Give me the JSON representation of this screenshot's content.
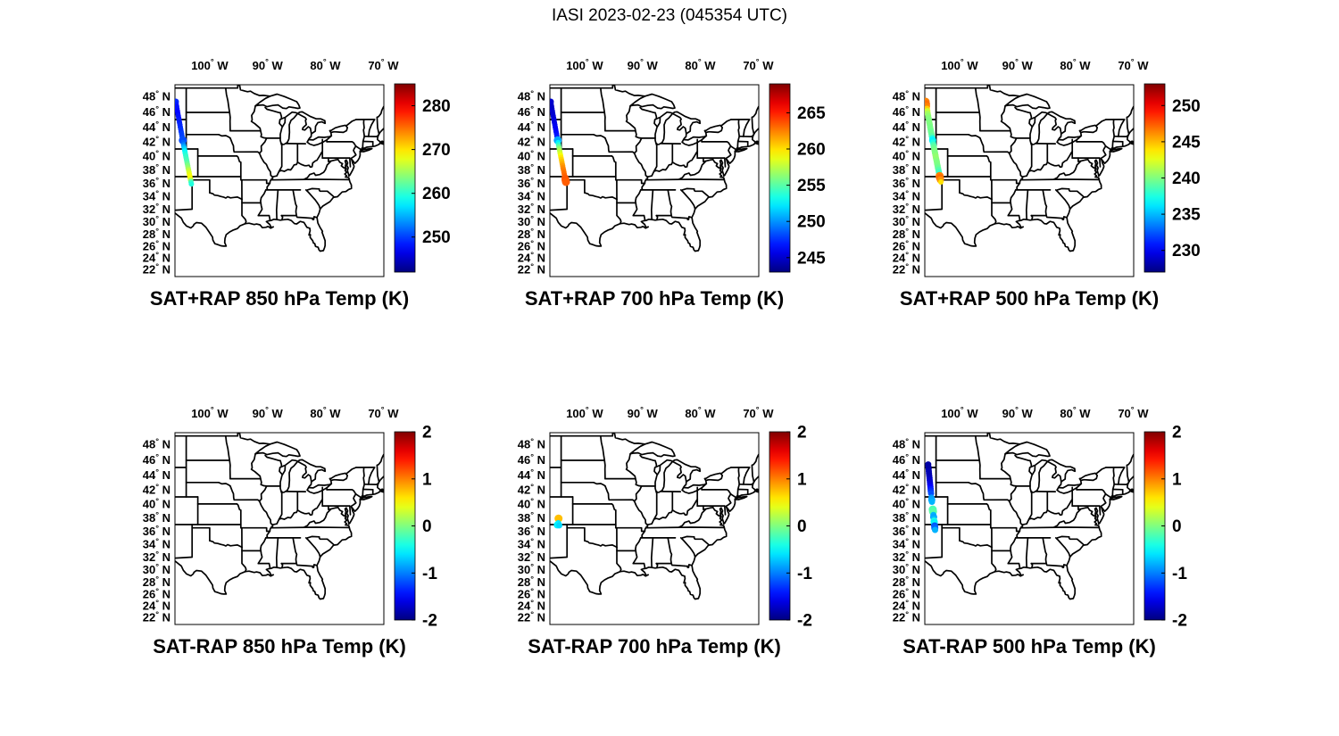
{
  "figure": {
    "title": "IASI 2023-02-23 (045354 UTC)",
    "background_color": "#ffffff",
    "text_color": "#000000",
    "map_line_color": "#000000"
  },
  "axes": {
    "lon_ticks": [
      100,
      90,
      80,
      70
    ],
    "lon_direction": "W",
    "lat_ticks": [
      48,
      46,
      44,
      42,
      40,
      38,
      36,
      34,
      32,
      30,
      28,
      26,
      24,
      22
    ],
    "lat_direction": "N"
  },
  "chart_data": [
    {
      "id": "sat-plus-rap-850",
      "type": "scatter",
      "projection": "mercator",
      "title": "SAT+RAP 850 hPa Temp (K)",
      "extent": {
        "lon_min": -106.0,
        "lon_max": -69.9,
        "lat_min": 20.8,
        "lat_max": 49.4
      },
      "colorbar": {
        "colormap": "jet",
        "min": 242,
        "max": 285,
        "ticks": [
          280,
          270,
          260,
          250
        ]
      },
      "points_format": [
        "lat",
        "lon",
        "value_K",
        "radius_px"
      ],
      "points": [
        [
          47.3,
          -105.85,
          249,
          3.5
        ],
        [
          47.0,
          -105.78,
          248.5,
          3
        ],
        [
          46.7,
          -105.71,
          248,
          3
        ],
        [
          46.4,
          -105.64,
          248,
          3
        ],
        [
          46.1,
          -105.57,
          247.5,
          3
        ],
        [
          45.8,
          -105.5,
          247.5,
          3
        ],
        [
          45.5,
          -105.43,
          248,
          3
        ],
        [
          45.2,
          -105.35,
          248,
          3
        ],
        [
          44.9,
          -105.28,
          248.5,
          3
        ],
        [
          44.6,
          -105.21,
          248.5,
          3
        ],
        [
          44.3,
          -105.14,
          249,
          3
        ],
        [
          44.0,
          -105.07,
          249,
          3
        ],
        [
          43.7,
          -105.0,
          249.5,
          3
        ],
        [
          43.4,
          -104.93,
          249.5,
          3
        ],
        [
          43.1,
          -104.86,
          250,
          3
        ],
        [
          42.8,
          -104.79,
          250,
          3
        ],
        [
          42.5,
          -104.72,
          250.5,
          3
        ],
        [
          42.2,
          -104.65,
          250.5,
          4.5
        ],
        [
          41.9,
          -104.58,
          251.5,
          3
        ],
        [
          41.6,
          -104.51,
          253,
          3
        ],
        [
          41.3,
          -104.44,
          255,
          3
        ],
        [
          41.0,
          -104.37,
          256.5,
          3
        ],
        [
          40.7,
          -104.29,
          258,
          3
        ],
        [
          40.4,
          -104.22,
          259,
          3
        ],
        [
          40.1,
          -104.15,
          260,
          3
        ],
        [
          39.8,
          -104.08,
          260.5,
          3
        ],
        [
          39.5,
          -104.01,
          261,
          3
        ],
        [
          39.2,
          -103.94,
          261.5,
          3
        ],
        [
          38.9,
          -103.87,
          262.5,
          3
        ],
        [
          38.6,
          -103.8,
          263.5,
          3
        ],
        [
          38.3,
          -103.73,
          264.5,
          3
        ],
        [
          38.0,
          -103.66,
          266,
          3
        ],
        [
          37.7,
          -103.58,
          267,
          3
        ],
        [
          37.4,
          -103.51,
          268,
          3
        ],
        [
          37.1,
          -103.44,
          268.5,
          3
        ],
        [
          36.8,
          -103.37,
          269,
          3
        ],
        [
          36.5,
          -103.3,
          266,
          3
        ],
        [
          36.2,
          -103.23,
          261,
          3
        ],
        [
          35.9,
          -103.16,
          259.5,
          3
        ]
      ]
    },
    {
      "id": "sat-plus-rap-700",
      "type": "scatter",
      "projection": "mercator",
      "title": "SAT+RAP 700 hPa Temp (K)",
      "extent": {
        "lon_min": -106.0,
        "lon_max": -69.9,
        "lat_min": 20.8,
        "lat_max": 49.4
      },
      "colorbar": {
        "colormap": "jet",
        "min": 243,
        "max": 269,
        "ticks": [
          265,
          260,
          255,
          250,
          245
        ]
      },
      "points_format": [
        "lat",
        "lon",
        "value_K",
        "radius_px"
      ],
      "points": [
        [
          47.3,
          -105.85,
          245,
          3.5
        ],
        [
          47.0,
          -105.78,
          245,
          3
        ],
        [
          46.7,
          -105.71,
          244.8,
          3
        ],
        [
          46.4,
          -105.64,
          244.8,
          3
        ],
        [
          46.1,
          -105.57,
          245,
          3
        ],
        [
          45.8,
          -105.5,
          245,
          3
        ],
        [
          45.5,
          -105.43,
          245.2,
          3
        ],
        [
          45.2,
          -105.35,
          245.2,
          3
        ],
        [
          44.9,
          -105.28,
          245.5,
          3
        ],
        [
          44.6,
          -105.21,
          245.5,
          3
        ],
        [
          44.3,
          -105.14,
          245.8,
          3
        ],
        [
          44.0,
          -105.07,
          246,
          3
        ],
        [
          43.7,
          -105.0,
          246,
          3
        ],
        [
          43.4,
          -104.93,
          246.2,
          3
        ],
        [
          43.1,
          -104.86,
          246.5,
          3
        ],
        [
          42.8,
          -104.79,
          246.8,
          3
        ],
        [
          42.5,
          -104.72,
          247.2,
          3
        ],
        [
          42.2,
          -104.65,
          250.5,
          4.5
        ],
        [
          41.9,
          -104.58,
          252.5,
          3
        ],
        [
          41.6,
          -104.51,
          254,
          3
        ],
        [
          41.3,
          -104.44,
          255.5,
          3
        ],
        [
          41.0,
          -104.37,
          256.5,
          3
        ],
        [
          40.7,
          -104.29,
          257.5,
          3
        ],
        [
          40.4,
          -104.22,
          258.2,
          3
        ],
        [
          40.1,
          -104.15,
          259,
          3
        ],
        [
          39.8,
          -104.08,
          259.8,
          3
        ],
        [
          39.5,
          -104.01,
          260.3,
          3
        ],
        [
          39.2,
          -103.94,
          260.8,
          3
        ],
        [
          38.9,
          -103.87,
          261.3,
          3
        ],
        [
          38.6,
          -103.8,
          261.8,
          3
        ],
        [
          38.3,
          -103.73,
          262.2,
          3
        ],
        [
          38.0,
          -103.66,
          262.5,
          3
        ],
        [
          37.7,
          -103.58,
          262.8,
          3
        ],
        [
          37.4,
          -103.51,
          263,
          3
        ],
        [
          37.1,
          -103.44,
          263.2,
          3
        ],
        [
          36.8,
          -103.37,
          263.4,
          4
        ],
        [
          36.5,
          -103.3,
          263.6,
          4.5
        ],
        [
          36.2,
          -103.23,
          263.4,
          4.5
        ]
      ]
    },
    {
      "id": "sat-plus-rap-500",
      "type": "scatter",
      "projection": "mercator",
      "title": "SAT+RAP 500 hPa Temp (K)",
      "extent": {
        "lon_min": -106.0,
        "lon_max": -69.9,
        "lat_min": 20.8,
        "lat_max": 49.4
      },
      "colorbar": {
        "colormap": "jet",
        "min": 227,
        "max": 253,
        "ticks": [
          250,
          245,
          240,
          235,
          230
        ]
      },
      "points_format": [
        "lat",
        "lon",
        "value_K",
        "radius_px"
      ],
      "points": [
        [
          47.3,
          -105.85,
          246.5,
          4.5
        ],
        [
          47.0,
          -105.78,
          247,
          4.5
        ],
        [
          46.7,
          -105.71,
          246.5,
          4
        ],
        [
          46.4,
          -105.64,
          244.5,
          3.5
        ],
        [
          46.1,
          -105.57,
          242,
          3.5
        ],
        [
          45.8,
          -105.5,
          241,
          3.5
        ],
        [
          45.5,
          -105.43,
          240.5,
          3.5
        ],
        [
          45.2,
          -105.35,
          240.2,
          3.5
        ],
        [
          44.9,
          -105.28,
          240,
          3.5
        ],
        [
          44.6,
          -105.21,
          240,
          3.5
        ],
        [
          44.3,
          -105.14,
          240,
          3.5
        ],
        [
          44.0,
          -105.07,
          239.8,
          3.5
        ],
        [
          43.7,
          -105.0,
          239.8,
          3.5
        ],
        [
          43.4,
          -104.93,
          239.5,
          3.5
        ],
        [
          43.1,
          -104.86,
          239.5,
          3.5
        ],
        [
          42.8,
          -104.79,
          239,
          3.5
        ],
        [
          42.5,
          -104.72,
          237.5,
          3.5
        ],
        [
          42.2,
          -104.65,
          236.5,
          4
        ],
        [
          41.9,
          -104.58,
          237.5,
          3.5
        ],
        [
          41.6,
          -104.51,
          238.5,
          3.5
        ],
        [
          41.3,
          -104.44,
          239.2,
          3.5
        ],
        [
          41.0,
          -104.37,
          239.6,
          3.5
        ],
        [
          40.7,
          -104.29,
          240,
          3.5
        ],
        [
          40.4,
          -104.22,
          240,
          3.5
        ],
        [
          40.1,
          -104.15,
          240.3,
          3.5
        ],
        [
          39.8,
          -104.08,
          240.5,
          3.5
        ],
        [
          39.5,
          -104.01,
          240.3,
          3.5
        ],
        [
          39.2,
          -103.94,
          240,
          3.5
        ],
        [
          38.9,
          -103.87,
          240,
          3.5
        ],
        [
          38.6,
          -103.8,
          239.8,
          3.5
        ],
        [
          38.3,
          -103.73,
          239.5,
          3.5
        ],
        [
          38.0,
          -103.66,
          239,
          3.5
        ],
        [
          37.7,
          -103.58,
          238.5,
          3.5
        ],
        [
          37.4,
          -103.51,
          238,
          3.5
        ],
        [
          37.1,
          -103.44,
          246.5,
          4.5
        ],
        [
          36.8,
          -103.37,
          247,
          4.5
        ],
        [
          36.5,
          -103.3,
          246,
          4
        ],
        [
          36.2,
          -103.23,
          244,
          3
        ]
      ]
    },
    {
      "id": "sat-minus-rap-850",
      "type": "scatter",
      "projection": "mercator",
      "title": "SAT-RAP 850 hPa Temp (K)",
      "extent": {
        "lon_min": -106.0,
        "lon_max": -69.9,
        "lat_min": 20.8,
        "lat_max": 49.4
      },
      "colorbar": {
        "colormap": "jet",
        "min": -2,
        "max": 2,
        "ticks": [
          2,
          1,
          0,
          -1,
          -2
        ]
      },
      "points_format": [
        "lat",
        "lon",
        "value_K",
        "radius_px"
      ],
      "points": []
    },
    {
      "id": "sat-minus-rap-700",
      "type": "scatter",
      "projection": "mercator",
      "title": "SAT-RAP 700 hPa Temp (K)",
      "extent": {
        "lon_min": -106.0,
        "lon_max": -69.9,
        "lat_min": 20.8,
        "lat_max": 49.4
      },
      "colorbar": {
        "colormap": "jet",
        "min": -2,
        "max": 2,
        "ticks": [
          2,
          1,
          0,
          -1,
          -2
        ]
      },
      "points_format": [
        "lat",
        "lon",
        "value_K",
        "radius_px"
      ],
      "points": [
        [
          37.9,
          -104.5,
          0.75,
          4.5
        ],
        [
          37.2,
          -104.55,
          -0.6,
          3.5
        ],
        [
          36.95,
          -104.72,
          -0.55,
          4
        ],
        [
          36.88,
          -104.38,
          -0.65,
          3.5
        ]
      ]
    },
    {
      "id": "sat-minus-rap-500",
      "type": "scatter",
      "projection": "mercator",
      "title": "SAT-RAP 500 hPa Temp (K)",
      "extent": {
        "lon_min": -106.0,
        "lon_max": -69.9,
        "lat_min": 20.8,
        "lat_max": 49.4
      },
      "colorbar": {
        "colormap": "jet",
        "min": -2,
        "max": 2,
        "ticks": [
          2,
          1,
          0,
          -1,
          -2
        ]
      },
      "points_format": [
        "lat",
        "lon",
        "value_K",
        "radius_px"
      ],
      "points": [
        [
          45.4,
          -105.42,
          -1.85,
          3.5
        ],
        [
          45.1,
          -105.38,
          -1.85,
          3.5
        ],
        [
          44.8,
          -105.34,
          -1.85,
          3.5
        ],
        [
          44.5,
          -105.3,
          -1.8,
          3.5
        ],
        [
          44.2,
          -105.27,
          -1.8,
          3.5
        ],
        [
          43.9,
          -105.23,
          -1.8,
          3.5
        ],
        [
          43.6,
          -105.19,
          -1.75,
          3.5
        ],
        [
          43.3,
          -105.15,
          -1.7,
          3.5
        ],
        [
          43.0,
          -105.11,
          -1.65,
          3.5
        ],
        [
          42.7,
          -105.07,
          -1.6,
          3.5
        ],
        [
          42.4,
          -105.03,
          -1.5,
          3.5
        ],
        [
          42.1,
          -105.0,
          -1.4,
          3.5
        ],
        [
          41.8,
          -104.96,
          -1.3,
          3.5
        ],
        [
          41.5,
          -104.92,
          -1.2,
          3.5
        ],
        [
          40.9,
          -104.84,
          -0.9,
          3.5
        ],
        [
          40.6,
          -104.8,
          -0.85,
          4
        ],
        [
          40.3,
          -104.76,
          -0.8,
          3.5
        ],
        [
          39.2,
          -104.62,
          -0.2,
          4.5
        ],
        [
          38.9,
          -104.58,
          -0.15,
          4.5
        ],
        [
          38.4,
          -104.52,
          -0.8,
          3.5
        ],
        [
          38.1,
          -104.48,
          -0.85,
          4
        ],
        [
          37.8,
          -104.44,
          -0.75,
          3.5
        ],
        [
          37.5,
          -104.4,
          -0.35,
          4
        ],
        [
          37.3,
          -104.37,
          -0.55,
          4
        ],
        [
          37.1,
          -104.35,
          -0.45,
          3.5
        ],
        [
          36.8,
          -104.31,
          -1.15,
          4
        ],
        [
          36.5,
          -104.27,
          -1.1,
          4
        ],
        [
          36.2,
          -104.23,
          -0.8,
          3.5
        ]
      ]
    }
  ]
}
